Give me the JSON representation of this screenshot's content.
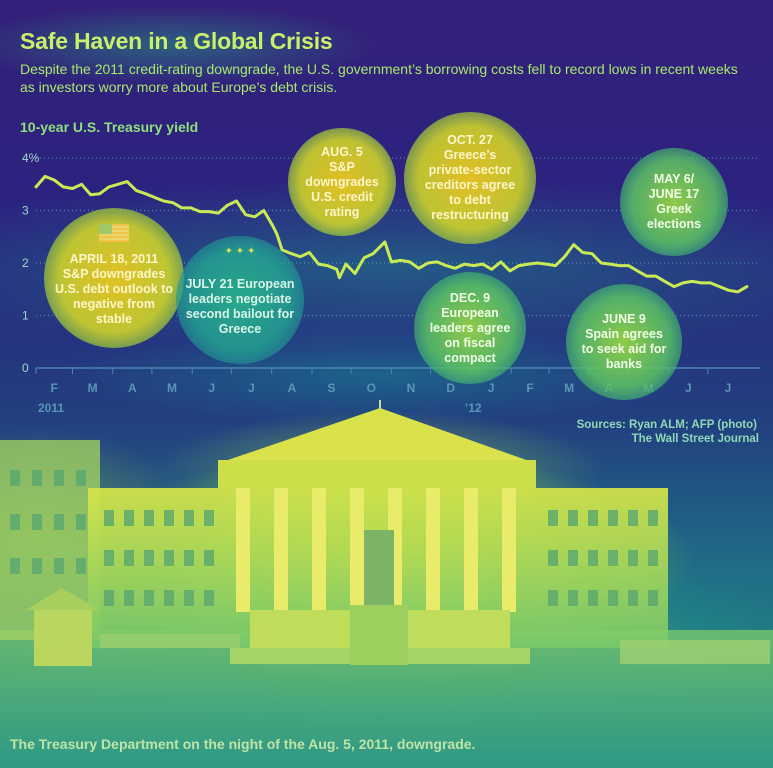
{
  "header": {
    "title": "Safe Haven in a Global Crisis",
    "subtitle": "Despite the 2011 credit-rating downgrade, the U.S. government’s borrowing costs fell to record lows in recent weeks as investors worry more about Europe’s debt crisis."
  },
  "chart_data": {
    "type": "line",
    "ylabel": "10-year U.S. Treasury yield",
    "y_ticks": [
      "4%",
      "3",
      "2",
      "1",
      "0"
    ],
    "ylim": [
      0,
      4
    ],
    "x_ticks": [
      "F",
      "M",
      "A",
      "M",
      "J",
      "J",
      "A",
      "S",
      "O",
      "N",
      "D",
      "J",
      "F",
      "M",
      "A",
      "M",
      "J",
      "J"
    ],
    "x_year_labels": [
      "2011",
      "’12"
    ],
    "grid": true,
    "series": [
      {
        "name": "",
        "x": [
          "2011-02-01",
          "2011-02-08",
          "2011-02-15",
          "2011-02-22",
          "2011-03-01",
          "2011-03-08",
          "2011-03-15",
          "2011-03-22",
          "2011-03-29",
          "2011-04-05",
          "2011-04-12",
          "2011-04-19",
          "2011-04-26",
          "2011-05-03",
          "2011-05-10",
          "2011-05-17",
          "2011-05-24",
          "2011-05-31",
          "2011-06-07",
          "2011-06-14",
          "2011-06-21",
          "2011-06-28",
          "2011-07-05",
          "2011-07-12",
          "2011-07-19",
          "2011-07-26",
          "2011-08-02",
          "2011-08-05",
          "2011-08-09",
          "2011-08-16",
          "2011-08-23",
          "2011-08-30",
          "2011-09-06",
          "2011-09-13",
          "2011-09-20",
          "2011-09-22",
          "2011-09-27",
          "2011-10-04",
          "2011-10-11",
          "2011-10-18",
          "2011-10-27",
          "2011-11-01",
          "2011-11-08",
          "2011-11-15",
          "2011-11-22",
          "2011-11-29",
          "2011-12-06",
          "2011-12-13",
          "2011-12-20",
          "2011-12-27",
          "2012-01-03",
          "2012-01-10",
          "2012-01-17",
          "2012-01-24",
          "2012-01-31",
          "2012-02-07",
          "2012-02-14",
          "2012-02-21",
          "2012-02-28",
          "2012-03-06",
          "2012-03-13",
          "2012-03-20",
          "2012-03-27",
          "2012-04-03",
          "2012-04-10",
          "2012-04-17",
          "2012-04-24",
          "2012-05-01",
          "2012-05-08",
          "2012-05-15",
          "2012-05-22",
          "2012-05-29",
          "2012-06-05",
          "2012-06-12",
          "2012-06-19",
          "2012-06-26",
          "2012-07-03",
          "2012-07-10",
          "2012-07-17",
          "2012-07-24",
          "2012-07-31"
        ],
        "y": [
          3.45,
          3.65,
          3.58,
          3.45,
          3.42,
          3.5,
          3.3,
          3.32,
          3.45,
          3.5,
          3.55,
          3.38,
          3.32,
          3.25,
          3.18,
          3.15,
          3.05,
          3.05,
          2.98,
          2.98,
          2.95,
          3.1,
          3.18,
          2.92,
          2.88,
          3.0,
          2.7,
          2.55,
          2.25,
          2.18,
          2.12,
          2.2,
          1.98,
          1.95,
          1.88,
          1.72,
          1.98,
          1.8,
          2.1,
          2.18,
          2.4,
          2.02,
          2.05,
          2.02,
          1.9,
          2.0,
          2.02,
          1.95,
          1.9,
          1.98,
          1.95,
          1.98,
          1.88,
          2.02,
          1.85,
          1.95,
          1.98,
          2.0,
          1.98,
          1.95,
          2.12,
          2.35,
          2.2,
          2.18,
          2.0,
          1.98,
          1.95,
          1.95,
          1.85,
          1.75,
          1.75,
          1.65,
          1.55,
          1.62,
          1.65,
          1.62,
          1.62,
          1.55,
          1.48,
          1.45,
          1.55
        ]
      }
    ]
  },
  "annotations": [
    {
      "id": "april18",
      "lines": [
        "APRIL 18, 2011",
        "S&P downgrades",
        "U.S. debt outlook to",
        "negative from",
        "stable"
      ],
      "icon": "us-flag-icon"
    },
    {
      "id": "july21",
      "lines": [
        "JULY 21  European",
        "leaders negotiate",
        "second bailout for",
        "Greece"
      ],
      "icon": "eu-stars-icon"
    },
    {
      "id": "aug5",
      "lines": [
        "AUG. 5",
        "S&P",
        "downgrades",
        "U.S. credit",
        "rating"
      ]
    },
    {
      "id": "oct27",
      "lines": [
        "OCT. 27",
        "Greece’s",
        "private-sector",
        "creditors agree",
        "to debt",
        "restructuring"
      ]
    },
    {
      "id": "dec9",
      "lines": [
        "DEC. 9",
        "European",
        "leaders agree",
        "on fiscal",
        "compact"
      ]
    },
    {
      "id": "may6",
      "lines": [
        "MAY 6/",
        "JUNE 17",
        "Greek",
        "elections"
      ]
    },
    {
      "id": "june9",
      "lines": [
        "JUNE 9",
        "Spain agrees",
        "to seek aid for",
        "banks"
      ]
    }
  ],
  "footer": {
    "sources": "Sources: Ryan ALM; AFP (photo)",
    "credit": "The  Wall Street Journal",
    "caption": "The Treasury Department on the night of the Aug. 5, 2011, downgrade."
  },
  "colors": {
    "line": "#c9ea54",
    "title": "#c9f06a",
    "highlight": "#e6d53a"
  }
}
